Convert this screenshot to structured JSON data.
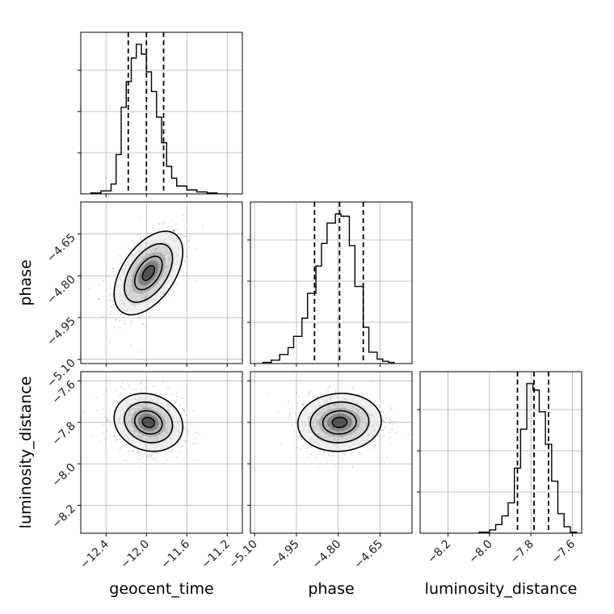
{
  "chart_data": {
    "type": "corner",
    "parameters": [
      "geocent_time",
      "phase",
      "luminosity_distance"
    ],
    "labels": {
      "geocent_time": "geocent_time",
      "phase": "phase",
      "luminosity_distance": "luminosity_distance"
    },
    "ranges": {
      "geocent_time": [
        -12.65,
        -11.05
      ],
      "phase": [
        -5.115,
        -4.535
      ],
      "luminosity_distance": [
        -8.335,
        -7.555
      ]
    },
    "ticks": {
      "geocent_time": [
        -12.4,
        -12.0,
        -11.6,
        -11.2
      ],
      "phase": [
        -5.1,
        -4.95,
        -4.8,
        -4.65
      ],
      "luminosity_distance": [
        -8.2,
        -8.0,
        -7.8,
        -7.6
      ]
    },
    "tick_labels": {
      "geocent_time": [
        "−12.4",
        "−12.0",
        "−11.6",
        "−11.2"
      ],
      "phase": [
        "−5.10",
        "−4.95",
        "−4.80",
        "−4.65"
      ],
      "luminosity_distance": [
        "−8.2",
        "−8.0",
        "−7.8",
        "−7.6"
      ]
    },
    "histograms": {
      "geocent_time": {
        "bin_edges": [
          -12.55,
          -12.45,
          -12.35,
          -12.3,
          -12.25,
          -12.2,
          -12.15,
          -12.1,
          -12.05,
          -12.0,
          -11.95,
          -11.9,
          -11.85,
          -11.8,
          -11.75,
          -11.7,
          -11.6,
          -11.5,
          -11.4,
          -11.3,
          -11.2
        ],
        "counts": [
          1,
          3,
          10,
          40,
          88,
          114,
          138,
          152,
          142,
          124,
          104,
          78,
          52,
          28,
          16,
          8,
          4,
          2,
          1,
          0
        ],
        "quantiles": [
          -12.18,
          -12.0,
          -11.83
        ]
      },
      "phase": {
        "bin_edges": [
          -5.07,
          -5.04,
          -5.01,
          -4.98,
          -4.96,
          -4.93,
          -4.91,
          -4.88,
          -4.86,
          -4.84,
          -4.81,
          -4.79,
          -4.76,
          -4.74,
          -4.71,
          -4.69,
          -4.66,
          -4.64,
          -4.62,
          -4.6
        ],
        "counts": [
          1,
          3,
          8,
          14,
          24,
          40,
          62,
          86,
          106,
          124,
          132,
          130,
          104,
          68,
          32,
          10,
          4,
          2,
          1
        ],
        "quantiles": [
          -4.885,
          -4.795,
          -4.71
        ]
      },
      "luminosity_distance": {
        "bin_edges": [
          -8.05,
          -8.0,
          -7.97,
          -7.94,
          -7.91,
          -7.88,
          -7.85,
          -7.82,
          -7.79,
          -7.76,
          -7.73,
          -7.7,
          -7.67,
          -7.64,
          -7.61,
          -7.58
        ],
        "counts": [
          1,
          3,
          8,
          16,
          28,
          60,
          96,
          138,
          132,
          112,
          82,
          48,
          18,
          6,
          1
        ],
        "quantiles": [
          -7.865,
          -7.785,
          -7.715
        ]
      }
    },
    "pairs": [
      {
        "x": "geocent_time",
        "y": "phase",
        "mean": [
          -11.98,
          -4.79
        ],
        "std": [
          0.17,
          0.075
        ],
        "corr": 0.5
      },
      {
        "x": "geocent_time",
        "y": "luminosity_distance",
        "mean": [
          -11.98,
          -7.8
        ],
        "std": [
          0.17,
          0.07
        ],
        "corr": -0.15
      },
      {
        "x": "phase",
        "y": "luminosity_distance",
        "mean": [
          -4.795,
          -7.8
        ],
        "std": [
          0.075,
          0.07
        ],
        "corr": 0.05
      }
    ],
    "grid": true,
    "colors": {
      "line": "#000000",
      "grid": "#b0b0b0",
      "points": "#000000"
    }
  }
}
